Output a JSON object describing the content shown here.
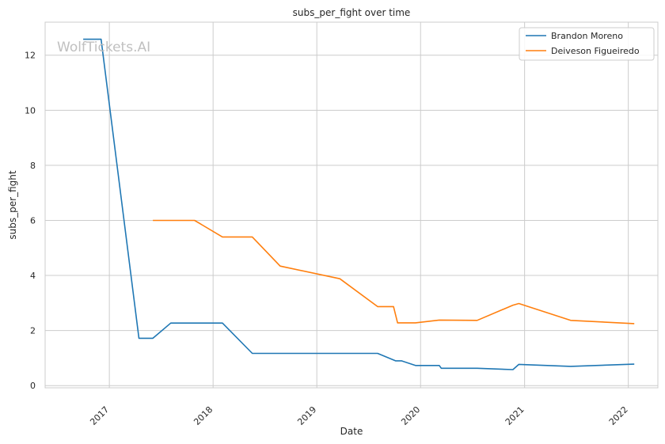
{
  "watermark": "WolfTickets.AI",
  "chart_data": {
    "type": "line",
    "title": "subs_per_fight over time",
    "xlabel": "Date",
    "ylabel": "subs_per_fight",
    "xlim": [
      "2016-05-20",
      "2022-04-15"
    ],
    "ylim": [
      -0.08,
      13.2
    ],
    "x_ticks": [
      {
        "label": "2017",
        "date": "2017-01-01"
      },
      {
        "label": "2018",
        "date": "2018-01-01"
      },
      {
        "label": "2019",
        "date": "2019-01-01"
      },
      {
        "label": "2020",
        "date": "2020-01-01"
      },
      {
        "label": "2021",
        "date": "2021-01-01"
      },
      {
        "label": "2022",
        "date": "2022-01-01"
      }
    ],
    "y_ticks": [
      0,
      2,
      4,
      6,
      8,
      10,
      12
    ],
    "grid": true,
    "legend_position": "top-right",
    "series": [
      {
        "name": "Brandon Moreno",
        "color": "#1f77b4",
        "points": [
          [
            "2016-10-01",
            12.58
          ],
          [
            "2016-12-03",
            12.58
          ],
          [
            "2017-04-15",
            1.72
          ],
          [
            "2017-06-03",
            1.72
          ],
          [
            "2017-08-05",
            2.27
          ],
          [
            "2018-02-03",
            2.27
          ],
          [
            "2018-05-19",
            1.17
          ],
          [
            "2019-08-03",
            1.17
          ],
          [
            "2019-10-05",
            0.9
          ],
          [
            "2019-10-26",
            0.9
          ],
          [
            "2019-12-14",
            0.73
          ],
          [
            "2020-03-07",
            0.73
          ],
          [
            "2020-03-14",
            0.63
          ],
          [
            "2020-07-18",
            0.63
          ],
          [
            "2020-11-21",
            0.58
          ],
          [
            "2020-12-12",
            0.77
          ],
          [
            "2021-06-12",
            0.7
          ],
          [
            "2022-01-22",
            0.78
          ]
        ]
      },
      {
        "name": "Deiveson Figueiredo",
        "color": "#ff7f0e",
        "points": [
          [
            "2017-06-03",
            6.0
          ],
          [
            "2017-10-28",
            6.0
          ],
          [
            "2018-02-03",
            5.4
          ],
          [
            "2018-05-19",
            5.4
          ],
          [
            "2018-08-25",
            4.34
          ],
          [
            "2019-03-23",
            3.88
          ],
          [
            "2019-08-03",
            2.87
          ],
          [
            "2019-09-28",
            2.87
          ],
          [
            "2019-10-12",
            2.28
          ],
          [
            "2019-12-14",
            2.28
          ],
          [
            "2020-03-07",
            2.38
          ],
          [
            "2020-07-18",
            2.37
          ],
          [
            "2020-11-21",
            2.92
          ],
          [
            "2020-12-12",
            2.98
          ],
          [
            "2021-06-12",
            2.37
          ],
          [
            "2022-01-22",
            2.25
          ]
        ]
      }
    ]
  }
}
